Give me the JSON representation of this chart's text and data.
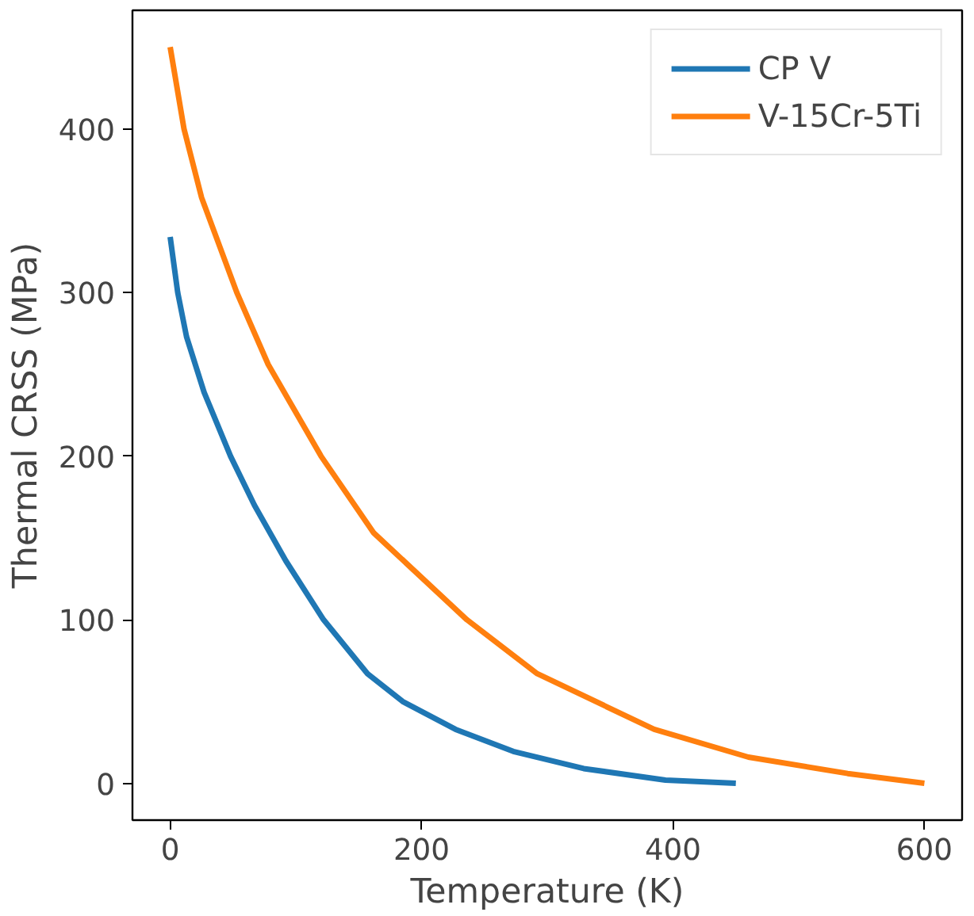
{
  "chart_data": {
    "type": "line",
    "xlabel": "Temperature (K)",
    "ylabel": "Thermal CRSS (MPa)",
    "xlim": [
      -30,
      630
    ],
    "ylim": [
      -22.5,
      472.5
    ],
    "xticks": [
      0,
      200,
      400,
      600
    ],
    "yticks": [
      0,
      100,
      200,
      300,
      400
    ],
    "grid": false,
    "legend": "top right",
    "line_style": "solid",
    "marker": "none",
    "series": [
      {
        "name": "CP V",
        "color": "#1f77b4",
        "x": [
          0,
          6,
          13,
          27,
          48,
          67,
          92,
          122,
          157,
          185,
          227,
          273,
          329,
          394,
          450
        ],
        "values": [
          334,
          300,
          273,
          239,
          200,
          170,
          136,
          100,
          67,
          50,
          33,
          19.5,
          9,
          2,
          0
        ]
      },
      {
        "name": "V-15Cr-5Ti",
        "color": "#ff7f0e",
        "x": [
          0,
          11,
          25,
          53,
          78,
          120,
          162,
          236,
          292,
          385,
          460,
          539,
          600
        ],
        "values": [
          450,
          400,
          358,
          300,
          256,
          200,
          153,
          100,
          67,
          33,
          16,
          6,
          0
        ]
      }
    ]
  }
}
